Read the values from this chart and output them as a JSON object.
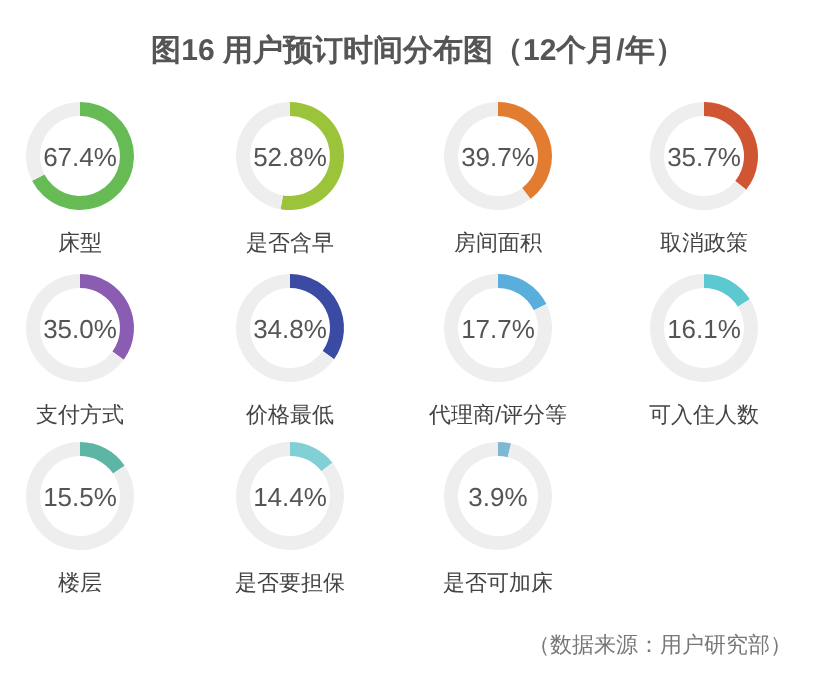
{
  "chart_data": [
    {
      "type": "other",
      "title": "图16 用户预订时间分布图（12个月/年）",
      "annotations": [
        "（数据来源：用户研究部）"
      ]
    },
    {
      "type": "donut",
      "title": "床型",
      "categories": [
        null,
        null
      ],
      "values": [
        67.4,
        32.6
      ],
      "colors": [
        "#66bb55",
        "#eeeeee"
      ],
      "annotations": [
        "67.4%"
      ]
    },
    {
      "type": "donut",
      "title": "是否含早",
      "categories": [
        null,
        null
      ],
      "values": [
        52.8,
        47.2
      ],
      "colors": [
        "#9cc43a",
        "#eeeeee"
      ],
      "annotations": [
        "52.8%"
      ]
    },
    {
      "type": "donut",
      "title": "房间面积",
      "categories": [
        null,
        null
      ],
      "values": [
        39.7,
        60.3
      ],
      "colors": [
        "#e27c30",
        "#eeeeee"
      ],
      "annotations": [
        "39.7%"
      ]
    },
    {
      "type": "donut",
      "title": "取消政策",
      "categories": [
        null,
        null
      ],
      "values": [
        35.7,
        64.3
      ],
      "colors": [
        "#cf5533",
        "#eeeeee"
      ],
      "annotations": [
        "35.7%"
      ]
    },
    {
      "type": "donut",
      "title": "支付方式",
      "categories": [
        null,
        null
      ],
      "values": [
        35.0,
        65.0
      ],
      "colors": [
        "#8a5cb2",
        "#eeeeee"
      ],
      "annotations": [
        "35.0%"
      ]
    },
    {
      "type": "donut",
      "title": "价格最低",
      "categories": [
        null,
        null
      ],
      "values": [
        34.8,
        65.2
      ],
      "colors": [
        "#3b4aa2",
        "#eeeeee"
      ],
      "annotations": [
        "34.8%"
      ]
    },
    {
      "type": "donut",
      "title": "代理商/评分等",
      "categories": [
        null,
        null
      ],
      "values": [
        17.7,
        82.3
      ],
      "colors": [
        "#5aaedc",
        "#eeeeee"
      ],
      "annotations": [
        "17.7%"
      ]
    },
    {
      "type": "donut",
      "title": "可入住人数",
      "categories": [
        null,
        null
      ],
      "values": [
        16.1,
        83.9
      ],
      "colors": [
        "#5cc8d0",
        "#eeeeee"
      ],
      "annotations": [
        "16.1%"
      ]
    },
    {
      "type": "donut",
      "title": "楼层",
      "categories": [
        null,
        null
      ],
      "values": [
        15.5,
        84.5
      ],
      "colors": [
        "#5db5a6",
        "#eeeeee"
      ],
      "annotations": [
        "15.5%"
      ]
    },
    {
      "type": "donut",
      "title": "是否要担保",
      "categories": [
        null,
        null
      ],
      "values": [
        14.4,
        85.6
      ],
      "colors": [
        "#80d0d6",
        "#eeeeee"
      ],
      "annotations": [
        "14.4%"
      ]
    },
    {
      "type": "donut",
      "title": "是否可加床",
      "categories": [
        null,
        null
      ],
      "values": [
        3.9,
        96.1
      ],
      "colors": [
        "#7fb8d2",
        "#eeeeee"
      ],
      "annotations": [
        "3.9%"
      ]
    }
  ]
}
